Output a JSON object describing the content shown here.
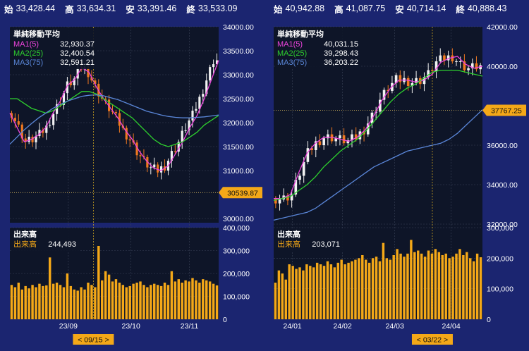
{
  "header_left": [
    {
      "label": "始",
      "value": "33,428.44"
    },
    {
      "label": "高",
      "value": "33,634.31"
    },
    {
      "label": "安",
      "value": "33,391.46"
    },
    {
      "label": "終",
      "value": "33,533.09"
    }
  ],
  "header_right": [
    {
      "label": "始",
      "value": "40,942.88"
    },
    {
      "label": "高",
      "value": "41,087.75"
    },
    {
      "label": "安",
      "value": "40,714.14"
    },
    {
      "label": "終",
      "value": "40,888.43"
    }
  ],
  "colors": {
    "background": "#1b2570",
    "panel": "#0e1528",
    "grid": "#3a4358",
    "up": "#f2f2f2",
    "down": "#f07820",
    "ma1": "#ee44dd",
    "ma2": "#2ed02e",
    "ma3": "#5a86d8",
    "volume": "#f4a818",
    "last_price_bg": "#f4a818"
  },
  "chart_data": [
    {
      "type": "candlestick",
      "indicator_title": "単純移動平均",
      "legend_position": "top-left",
      "ma_legend": [
        {
          "name": "MA1(5)",
          "value": "32,930.37",
          "color": "#ee44dd"
        },
        {
          "name": "MA2(25)",
          "value": "32,400.54",
          "color": "#2ed02e"
        },
        {
          "name": "MA3(75)",
          "value": "32,591.21",
          "color": "#5a86d8"
        }
      ],
      "ylim": [
        30000,
        34000
      ],
      "yticks": [
        "34000.00",
        "33500.00",
        "33000.00",
        "32500.00",
        "32000.00",
        "31500.00",
        "31000.00",
        "30000.00"
      ],
      "ytick_values": [
        34000,
        33500,
        33000,
        32500,
        32000,
        31500,
        31000,
        30000
      ],
      "x_labels": [
        "23/09",
        "23/10",
        "23/11"
      ],
      "x_label_positions": [
        0.28,
        0.58,
        0.86
      ],
      "crosshair_label": "< 09/15 >",
      "crosshair_position": 0.4,
      "last_price_label": "30539.87",
      "last_price": 30539.87,
      "ma1": [
        32200,
        31900,
        31600,
        31650,
        31750,
        31900,
        32200,
        32450,
        32780,
        32900,
        33150,
        33050,
        32750,
        32500,
        32300,
        32100,
        31850,
        31650,
        31400,
        31200,
        31050,
        31000,
        31100,
        31350,
        31600,
        31900,
        32150,
        32500,
        32900,
        33300
      ],
      "ma2": [
        32500,
        32500,
        32400,
        32300,
        32250,
        32200,
        32250,
        32350,
        32450,
        32550,
        32650,
        32650,
        32600,
        32500,
        32400,
        32300,
        32200,
        32100,
        31950,
        31800,
        31650,
        31550,
        31500,
        31550,
        31600,
        31700,
        31800,
        31950,
        32050,
        32150
      ],
      "ma3": [
        31550,
        31700,
        31850,
        31980,
        32100,
        32200,
        32300,
        32380,
        32450,
        32500,
        32550,
        32570,
        32580,
        32560,
        32520,
        32480,
        32420,
        32360,
        32300,
        32240,
        32200,
        32160,
        32130,
        32110,
        32100,
        32100,
        32110,
        32120,
        32140,
        32160
      ],
      "volume": {
        "title": "出来高",
        "legend_name": "出来高",
        "legend_value": "244,493",
        "ylim": [
          0,
          400000
        ],
        "yticks": [
          "400,000",
          "300,000",
          "200,000",
          "100,000",
          "0"
        ],
        "ytick_values": [
          400000,
          300000,
          200000,
          100000,
          0
        ],
        "values": [
          150000,
          140000,
          160000,
          130000,
          145000,
          135000,
          150000,
          140000,
          155000,
          145000,
          148000,
          270000,
          155000,
          160000,
          150000,
          140000,
          200000,
          145000,
          130000,
          125000,
          140000,
          130000,
          160000,
          150000,
          140000,
          320000,
          170000,
          210000,
          195000,
          165000,
          175000,
          160000,
          150000,
          140000,
          145000,
          155000,
          160000,
          165000,
          150000,
          140000,
          150000,
          155000,
          150000,
          145000,
          160000,
          150000,
          210000,
          165000,
          175000,
          160000,
          170000,
          165000,
          180000,
          170000,
          160000,
          175000,
          170000,
          165000,
          155000,
          148000
        ]
      }
    },
    {
      "type": "candlestick",
      "indicator_title": "単純移動平均",
      "legend_position": "top-left",
      "ma_legend": [
        {
          "name": "MA1(5)",
          "value": "40,031.15",
          "color": "#ee44dd"
        },
        {
          "name": "MA2(25)",
          "value": "39,298.43",
          "color": "#2ed02e"
        },
        {
          "name": "MA3(75)",
          "value": "36,203.22",
          "color": "#5a86d8"
        }
      ],
      "ylim": [
        32000,
        42000
      ],
      "yticks": [
        "42000.00",
        "40000.00",
        "36000.00",
        "34000.00",
        "32000.00"
      ],
      "ytick_values": [
        42000,
        40000,
        36000,
        34000,
        32000
      ],
      "x_labels": [
        "24/01",
        "24/02",
        "24/03",
        "24/04"
      ],
      "x_label_positions": [
        0.09,
        0.33,
        0.58,
        0.85
      ],
      "crosshair_label": "< 03/22 >",
      "crosshair_position": 0.76,
      "last_price_label": "37767.25",
      "last_price": 37767.25,
      "ma1": [
        33300,
        33300,
        33500,
        34600,
        35600,
        36100,
        36400,
        36400,
        36300,
        36200,
        36400,
        36800,
        37500,
        38300,
        38900,
        39300,
        39300,
        39200,
        39300,
        39600,
        40200,
        40400,
        40500,
        40100,
        39900,
        40000
      ],
      "ma2": [
        33200,
        33300,
        33400,
        33700,
        34000,
        34400,
        34900,
        35300,
        35700,
        36000,
        36300,
        36700,
        37200,
        37700,
        38200,
        38600,
        38900,
        39100,
        39400,
        39700,
        39800,
        39800,
        39800,
        39700,
        39600,
        39500
      ],
      "ma3": [
        32200,
        32300,
        32400,
        32500,
        32600,
        32800,
        33100,
        33400,
        33700,
        34000,
        34300,
        34600,
        34900,
        35100,
        35300,
        35500,
        35700,
        35800,
        35900,
        36000,
        36100,
        36300,
        36600,
        37000,
        37400,
        37800
      ],
      "volume": {
        "title": "出来高",
        "legend_name": "出来高",
        "legend_value": "203,071",
        "ylim": [
          0,
          300000
        ],
        "yticks": [
          "300,000",
          "200,000",
          "100,000",
          "0"
        ],
        "ytick_values": [
          300000,
          200000,
          100000,
          0
        ],
        "values": [
          120000,
          160000,
          150000,
          130000,
          180000,
          175000,
          165000,
          170000,
          160000,
          180000,
          175000,
          170000,
          185000,
          180000,
          175000,
          190000,
          180000,
          170000,
          185000,
          195000,
          180000,
          185000,
          190000,
          195000,
          200000,
          210000,
          195000,
          185000,
          200000,
          205000,
          190000,
          250000,
          200000,
          195000,
          210000,
          230000,
          215000,
          205000,
          215000,
          260000,
          220000,
          225000,
          215000,
          205000,
          225000,
          215000,
          230000,
          220000,
          210000,
          215000,
          200000,
          205000,
          215000,
          230000,
          210000,
          220000,
          200000,
          190000,
          215000,
          203071
        ]
      }
    }
  ]
}
